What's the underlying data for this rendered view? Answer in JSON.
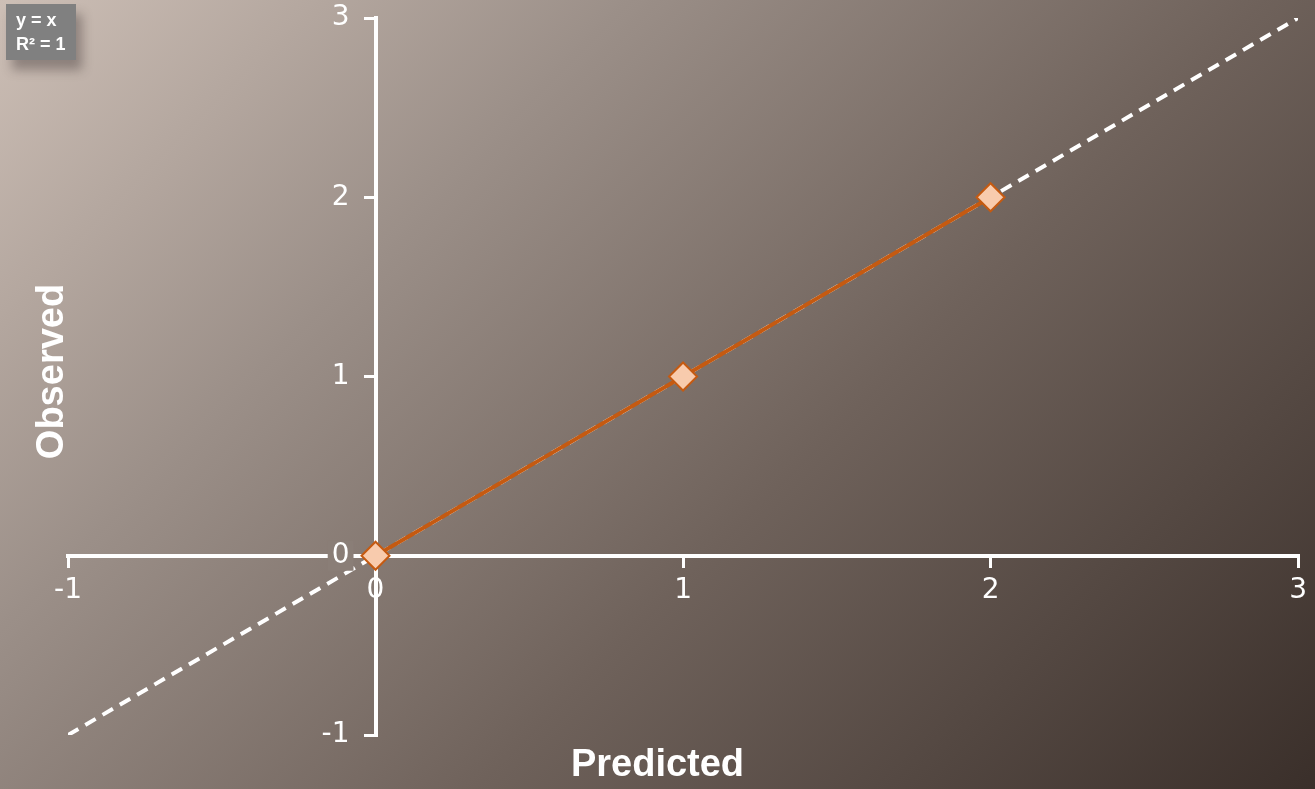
{
  "chart_data": {
    "type": "scatter",
    "xlabel": "Predicted",
    "ylabel": "Observed",
    "xlim": [
      -1,
      3
    ],
    "ylim": [
      -1,
      3
    ],
    "xticks": [
      -1,
      0,
      1,
      2,
      3
    ],
    "yticks": [
      -1,
      0,
      1,
      2,
      3
    ],
    "grid": false,
    "legend": false,
    "marker": "diamond",
    "annotations": [
      "y = x",
      "R² = 1"
    ],
    "series": [
      {
        "type": "line",
        "color": "#c55a11",
        "x": [
          0,
          1,
          2
        ],
        "values": [
          0,
          1,
          2
        ]
      },
      {
        "type": "line",
        "color": "#ffffff",
        "x": [
          -1,
          3
        ],
        "values": [
          -1,
          3
        ],
        "marker": "none",
        "line_style": "dashed"
      }
    ]
  }
}
